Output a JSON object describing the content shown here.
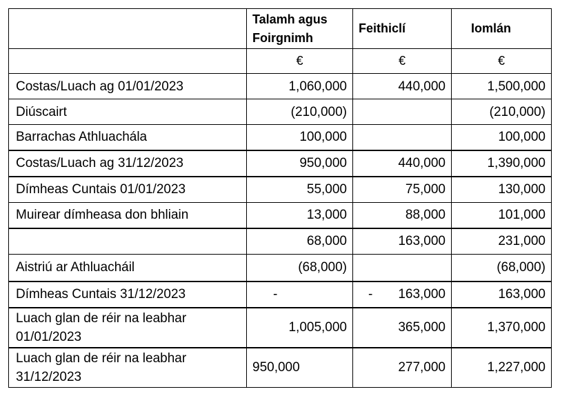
{
  "table": {
    "headers": {
      "blank": "",
      "col1": "Talamh agus Foirgnimh",
      "col2": "Feithiclí",
      "col3": "Iomlán"
    },
    "currency": {
      "blank": "",
      "col1": "€",
      "col2": "€",
      "col3": "€"
    },
    "rows": [
      {
        "label": "Costas/Luach ag 01/01/2023",
        "c1": "1,060,000",
        "c2": "440,000",
        "c3": "1,500,000"
      },
      {
        "label": "Diúscairt",
        "c1": "(210,000)",
        "c2": "",
        "c3": "(210,000)"
      },
      {
        "label": "Barrachas Athluachála",
        "c1": "100,000",
        "c2": "",
        "c3": "100,000"
      },
      {
        "label": "Costas/Luach ag 31/12/2023",
        "c1": "950,000",
        "c2": "440,000",
        "c3": "1,390,000"
      },
      {
        "label": "Dímheas Cuntais 01/01/2023",
        "c1": "55,000",
        "c2": "75,000",
        "c3": "130,000"
      },
      {
        "label": "Muirear dímheasa don bhliain",
        "c1": "13,000",
        "c2": "88,000",
        "c3": "101,000"
      },
      {
        "label": "",
        "c1": "68,000",
        "c2": "163,000",
        "c3": "231,000"
      },
      {
        "label": "Aistriú ar Athluachá­il",
        "c1": "(68,000)",
        "c2": "",
        "c3": "(68,000)"
      },
      {
        "label": "Dímheas Cuntais 31/12/2023",
        "c1": "-",
        "c2_dash": "-",
        "c2": "163,000",
        "c3": "163,000"
      },
      {
        "label": "Luach glan de réir na leabhar 01/01/2023",
        "c1": "1,005,000",
        "c2": "365,000",
        "c3": "1,370,000"
      },
      {
        "label": "Luach glan de réir na leabhar 31/12/2023",
        "c1": "950,000",
        "c2": "277,000",
        "c3": "1,227,000"
      }
    ]
  }
}
